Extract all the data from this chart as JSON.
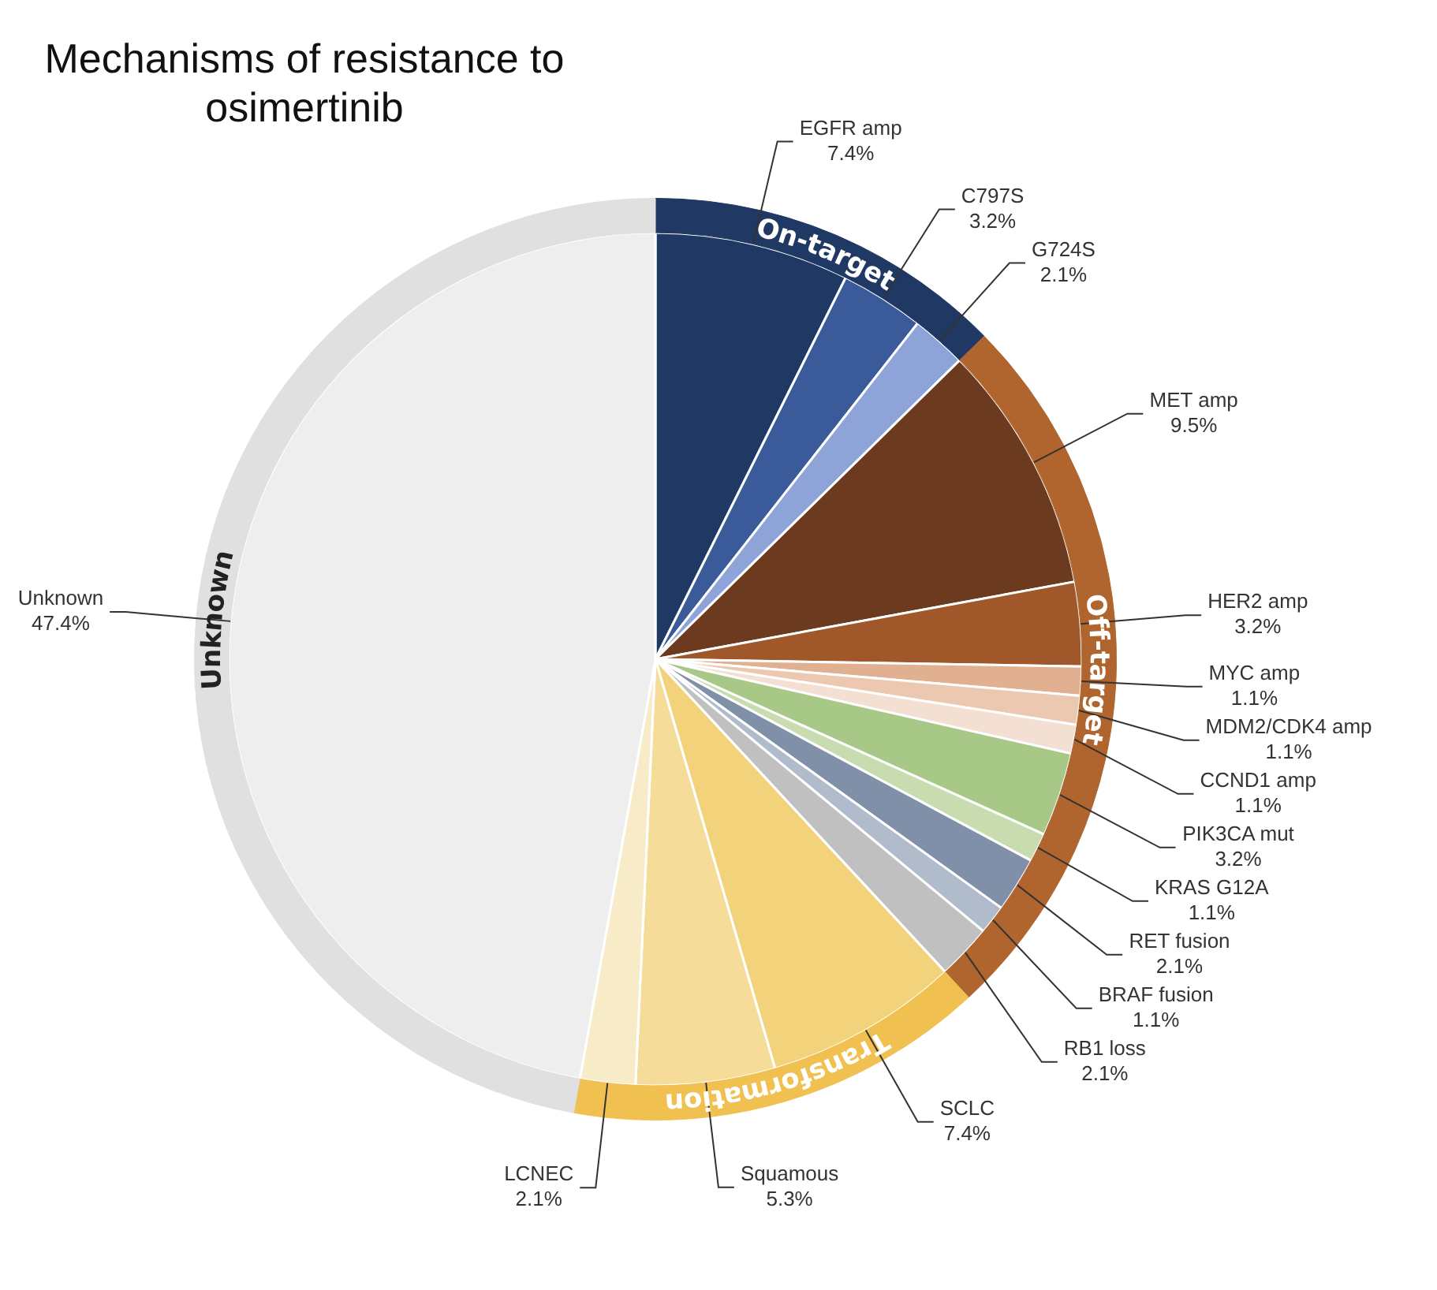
{
  "chart_data": {
    "type": "pie",
    "title": "Mechanisms of resistance to osimertinib",
    "categories": [
      "EGFR amp",
      "C797S",
      "G724S",
      "MET amp",
      "HER2 amp",
      "MYC amp",
      "MDM2/CDK4 amp",
      "CCND1 amp",
      "PIK3CA mut",
      "KRAS G12A",
      "RET fusion",
      "BRAF fusion",
      "RB1 loss",
      "SCLC",
      "Squamous",
      "LCNEC",
      "Unknown"
    ],
    "values": [
      7.4,
      3.2,
      2.1,
      9.5,
      3.2,
      1.1,
      1.1,
      1.1,
      3.2,
      1.1,
      2.1,
      1.1,
      2.1,
      7.4,
      5.3,
      2.1,
      47.4
    ],
    "value_labels": [
      "7.4%",
      "3.2%",
      "2.1%",
      "9.5%",
      "3.2%",
      "1.1%",
      "1.1%",
      "1.1%",
      "3.2%",
      "1.1%",
      "2.1%",
      "1.1%",
      "2.1%",
      "7.4%",
      "5.3%",
      "2.1%",
      "47.4%"
    ],
    "colors": [
      "#1f3864",
      "#3a5a9a",
      "#8ea4d8",
      "#6b3a1f",
      "#a0582a",
      "#e0b090",
      "#ecc8b0",
      "#f3e0d3",
      "#a8c888",
      "#c8dcb0",
      "#8090a8",
      "#b0bccc",
      "#c0c0c0",
      "#f2d27a",
      "#f5dc98",
      "#f8ecc8",
      "#eeeeee"
    ],
    "annotations": [
      "On-target",
      "Off-target",
      "Transformation",
      "Unknown"
    ],
    "series": [
      {
        "type": "donut",
        "values": [
          7.4,
          3.2,
          2.1,
          9.5,
          3.2,
          1.1,
          1.1,
          1.1,
          3.2,
          1.1,
          2.1,
          1.1,
          2.1,
          7.4,
          5.3,
          2.1,
          47.4
        ],
        "colors": [
          "#1f3864",
          "#1f3864",
          "#1f3864",
          "#b0652e",
          "#b0652e",
          "#b0652e",
          "#b0652e",
          "#b0652e",
          "#b0652e",
          "#b0652e",
          "#b0652e",
          "#b0652e",
          "#b0652e",
          "#f0c050",
          "#f0c050",
          "#f0c050",
          "#e0e0e0"
        ]
      }
    ]
  }
}
